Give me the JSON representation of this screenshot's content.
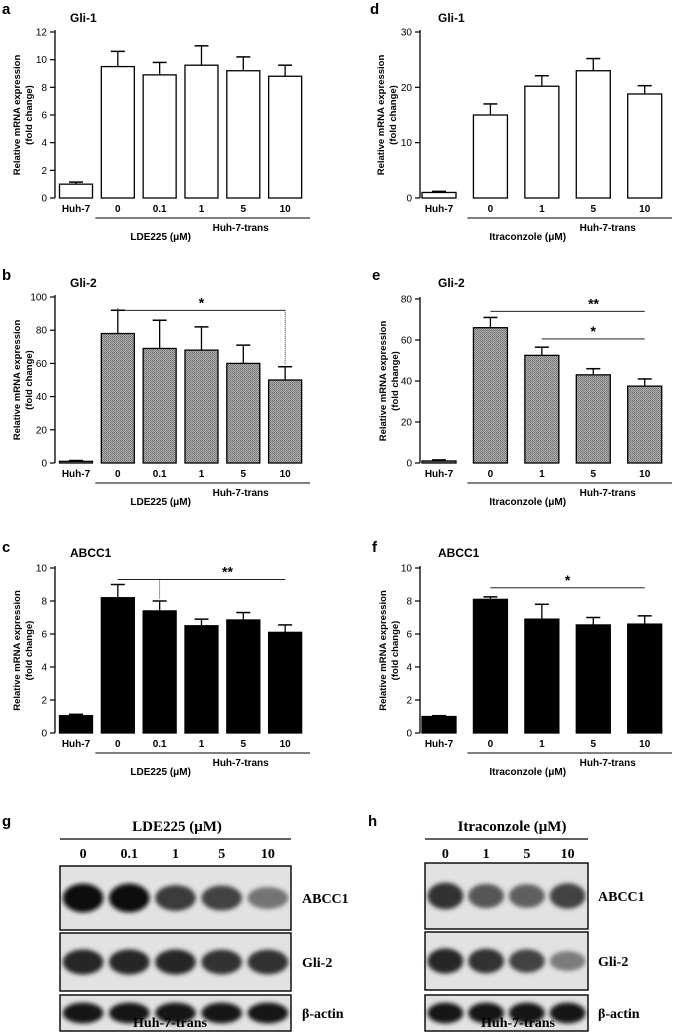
{
  "colors": {
    "open": "#ffffff",
    "gray": "#999999",
    "black": "#000000",
    "stroke": "#000000"
  },
  "chart_data": [
    {
      "id": "a",
      "panel_label": "a",
      "type": "bar",
      "title": "Gli-1",
      "ylabel": [
        "Relative mRNA expression",
        "(fold change)"
      ],
      "ylim": [
        0,
        12
      ],
      "yticks": [
        0,
        2,
        4,
        6,
        8,
        10,
        12
      ],
      "categories": [
        "Huh-7",
        "0",
        "0.1",
        "1",
        "5",
        "10"
      ],
      "values": [
        1.0,
        9.5,
        8.9,
        9.6,
        9.2,
        8.8
      ],
      "errors": [
        0.15,
        1.1,
        0.9,
        1.4,
        1.0,
        0.8
      ],
      "fill": "open",
      "group_label": "Huh-7-trans",
      "drug_label": "LDE225 (μM)",
      "significance": []
    },
    {
      "id": "b",
      "panel_label": "b",
      "type": "bar",
      "title": "Gli-2",
      "ylabel": [
        "Relative mRNA expression",
        "(fold change)"
      ],
      "ylim": [
        0,
        100
      ],
      "yticks": [
        0,
        20,
        40,
        60,
        80,
        100
      ],
      "categories": [
        "Huh-7",
        "0",
        "0.1",
        "1",
        "5",
        "10"
      ],
      "values": [
        1.0,
        78,
        69,
        68,
        60,
        50
      ],
      "errors": [
        0.5,
        14,
        17,
        14,
        11,
        8
      ],
      "fill": "gray",
      "group_label": "Huh-7-trans",
      "drug_label": "LDE225 (μM)",
      "significance": [
        {
          "from": 1,
          "to": 5,
          "y": 92,
          "label": "*"
        }
      ]
    },
    {
      "id": "c",
      "panel_label": "c",
      "type": "bar",
      "title": "ABCC1",
      "ylabel": [
        "Relative mRNA expression",
        "(fold change)"
      ],
      "ylim": [
        0,
        10
      ],
      "yticks": [
        0,
        2,
        4,
        6,
        8,
        10
      ],
      "categories": [
        "Huh-7",
        "0",
        "0.1",
        "1",
        "5",
        "10"
      ],
      "values": [
        1.05,
        8.2,
        7.4,
        6.5,
        6.85,
        6.1
      ],
      "errors": [
        0.08,
        0.8,
        0.6,
        0.4,
        0.45,
        0.45
      ],
      "fill": "black",
      "group_label": "Huh-7-trans",
      "drug_label": "LDE225 (μM)",
      "significance": [
        {
          "from": 1,
          "to": 5,
          "y": 9.3,
          "label": "**"
        }
      ]
    },
    {
      "id": "d",
      "panel_label": "d",
      "type": "bar",
      "title": "Gli-1",
      "ylabel": [
        "Relative mRNA expression",
        "(fold change)"
      ],
      "ylim": [
        0,
        30
      ],
      "yticks": [
        0,
        10,
        20,
        30
      ],
      "categories": [
        "Huh-7",
        "0",
        "1",
        "5",
        "10"
      ],
      "values": [
        1.0,
        15,
        20.2,
        23,
        18.8
      ],
      "errors": [
        0.2,
        2.0,
        1.9,
        2.2,
        1.5
      ],
      "fill": "open",
      "group_label": "Huh-7-trans",
      "drug_label": "Itraconzole (μM)",
      "significance": []
    },
    {
      "id": "e",
      "panel_label": "e",
      "type": "bar",
      "title": "Gli-2",
      "ylabel": [
        "Relative mRNA expression",
        "(fold change)"
      ],
      "ylim": [
        0,
        80
      ],
      "yticks": [
        0,
        20,
        40,
        60,
        80
      ],
      "categories": [
        "Huh-7",
        "0",
        "1",
        "5",
        "10"
      ],
      "values": [
        1.0,
        66,
        52.5,
        43,
        37.5
      ],
      "errors": [
        0.5,
        5,
        4,
        3,
        3.5
      ],
      "fill": "gray",
      "group_label": "Huh-7-trans",
      "drug_label": "Itraconzole (μM)",
      "significance": [
        {
          "from": 1,
          "to": 4,
          "y": 74,
          "label": "**"
        },
        {
          "from": 2,
          "to": 4,
          "y": 60.5,
          "label": "*"
        }
      ]
    },
    {
      "id": "f",
      "panel_label": "f",
      "type": "bar",
      "title": "ABCC1",
      "ylabel": [
        "Relative mRNA expression",
        "(fold change)"
      ],
      "ylim": [
        0,
        10
      ],
      "yticks": [
        0,
        2,
        4,
        6,
        8,
        10
      ],
      "categories": [
        "Huh-7",
        "0",
        "1",
        "5",
        "10"
      ],
      "values": [
        1.0,
        8.1,
        6.9,
        6.55,
        6.6
      ],
      "errors": [
        0.05,
        0.15,
        0.9,
        0.45,
        0.5
      ],
      "fill": "black",
      "group_label": "Huh-7-trans",
      "drug_label": "Itraconzole (μM)",
      "significance": [
        {
          "from": 1,
          "to": 4,
          "y": 8.8,
          "label": "*"
        }
      ]
    }
  ],
  "blots": [
    {
      "panel_label": "g",
      "header": "LDE225 (μM)",
      "lanes": [
        "0",
        "0.1",
        "1",
        "5",
        "10"
      ],
      "rows": [
        {
          "label": "ABCC1",
          "intensity": [
            1.0,
            1.0,
            0.75,
            0.7,
            0.45
          ]
        },
        {
          "label": "Gli-2",
          "intensity": [
            0.85,
            0.85,
            0.85,
            0.8,
            0.8
          ]
        },
        {
          "label": "β-actin",
          "intensity": [
            0.95,
            0.95,
            0.95,
            0.95,
            0.95
          ]
        }
      ],
      "footer": "Huh-7-trans"
    },
    {
      "panel_label": "h",
      "header": "Itraconzole (μM)",
      "lanes": [
        "0",
        "1",
        "5",
        "10"
      ],
      "rows": [
        {
          "label": "ABCC1",
          "intensity": [
            0.8,
            0.6,
            0.55,
            0.7
          ]
        },
        {
          "label": "Gli-2",
          "intensity": [
            0.85,
            0.8,
            0.7,
            0.4
          ]
        },
        {
          "label": "β-actin",
          "intensity": [
            0.95,
            0.95,
            0.95,
            0.95
          ]
        }
      ],
      "footer": "Huh-7-trans"
    }
  ]
}
